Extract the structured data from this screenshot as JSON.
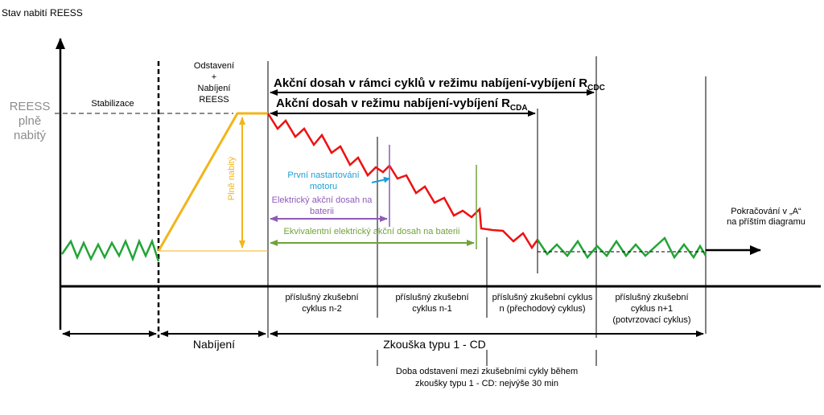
{
  "axis": {
    "y_title": "Stav nabití REESS",
    "reess_full": [
      "REESS",
      "plně",
      "nabitý"
    ]
  },
  "phases": {
    "stabilization": "Stabilizace",
    "standstill": [
      "Odstavení",
      "+",
      "Nabíjení",
      "REESS"
    ],
    "fully_charged": "Plně nabitý"
  },
  "ranges": {
    "rcdc_text": "Akční dosah v rámci cyklů v režimu nabíjení-vybíjení  R",
    "rcdc_sub": "CDC",
    "rcda_text": "Akční dosah v režimu nabíjení-vybíjení  R",
    "rcda_sub": "CDA",
    "engine_start": [
      "První nastartování",
      "motoru"
    ],
    "electric_range": [
      "Elektrický akční dosah na",
      "baterii"
    ],
    "equivalent_range": "Ekvivalentní elektrický akční dosah na baterii"
  },
  "continuation": [
    "Pokračování v „A“",
    "na příštím diagramu"
  ],
  "cycles": [
    [
      "příslušný zkušební",
      "cyklus n-2"
    ],
    [
      "příslušný zkušební",
      "cyklus n-1"
    ],
    [
      "příslušný zkušební cyklus",
      "n (přechodový cyklus)"
    ],
    [
      "příslušný zkušební",
      "cyklus n+1",
      "(potvrzovací cyklus)"
    ]
  ],
  "bottom": {
    "charging": "Nabíjení",
    "test": "Zkouška typu 1 - CD",
    "soak_note": [
      "Doba odstavení  mezi zkušebními  cykly během",
      "zkoušky typu 1 - CD: nejvýše 30 min"
    ]
  },
  "colors": {
    "soc_stable": "#22a535",
    "soc_discharge": "#ee1111",
    "charging": "#f2b51a",
    "engine_start": "#1a9fd8",
    "electric_range": "#8e5bb8",
    "equivalent_range": "#70a33a",
    "reess_full": "#8c8c8c"
  }
}
